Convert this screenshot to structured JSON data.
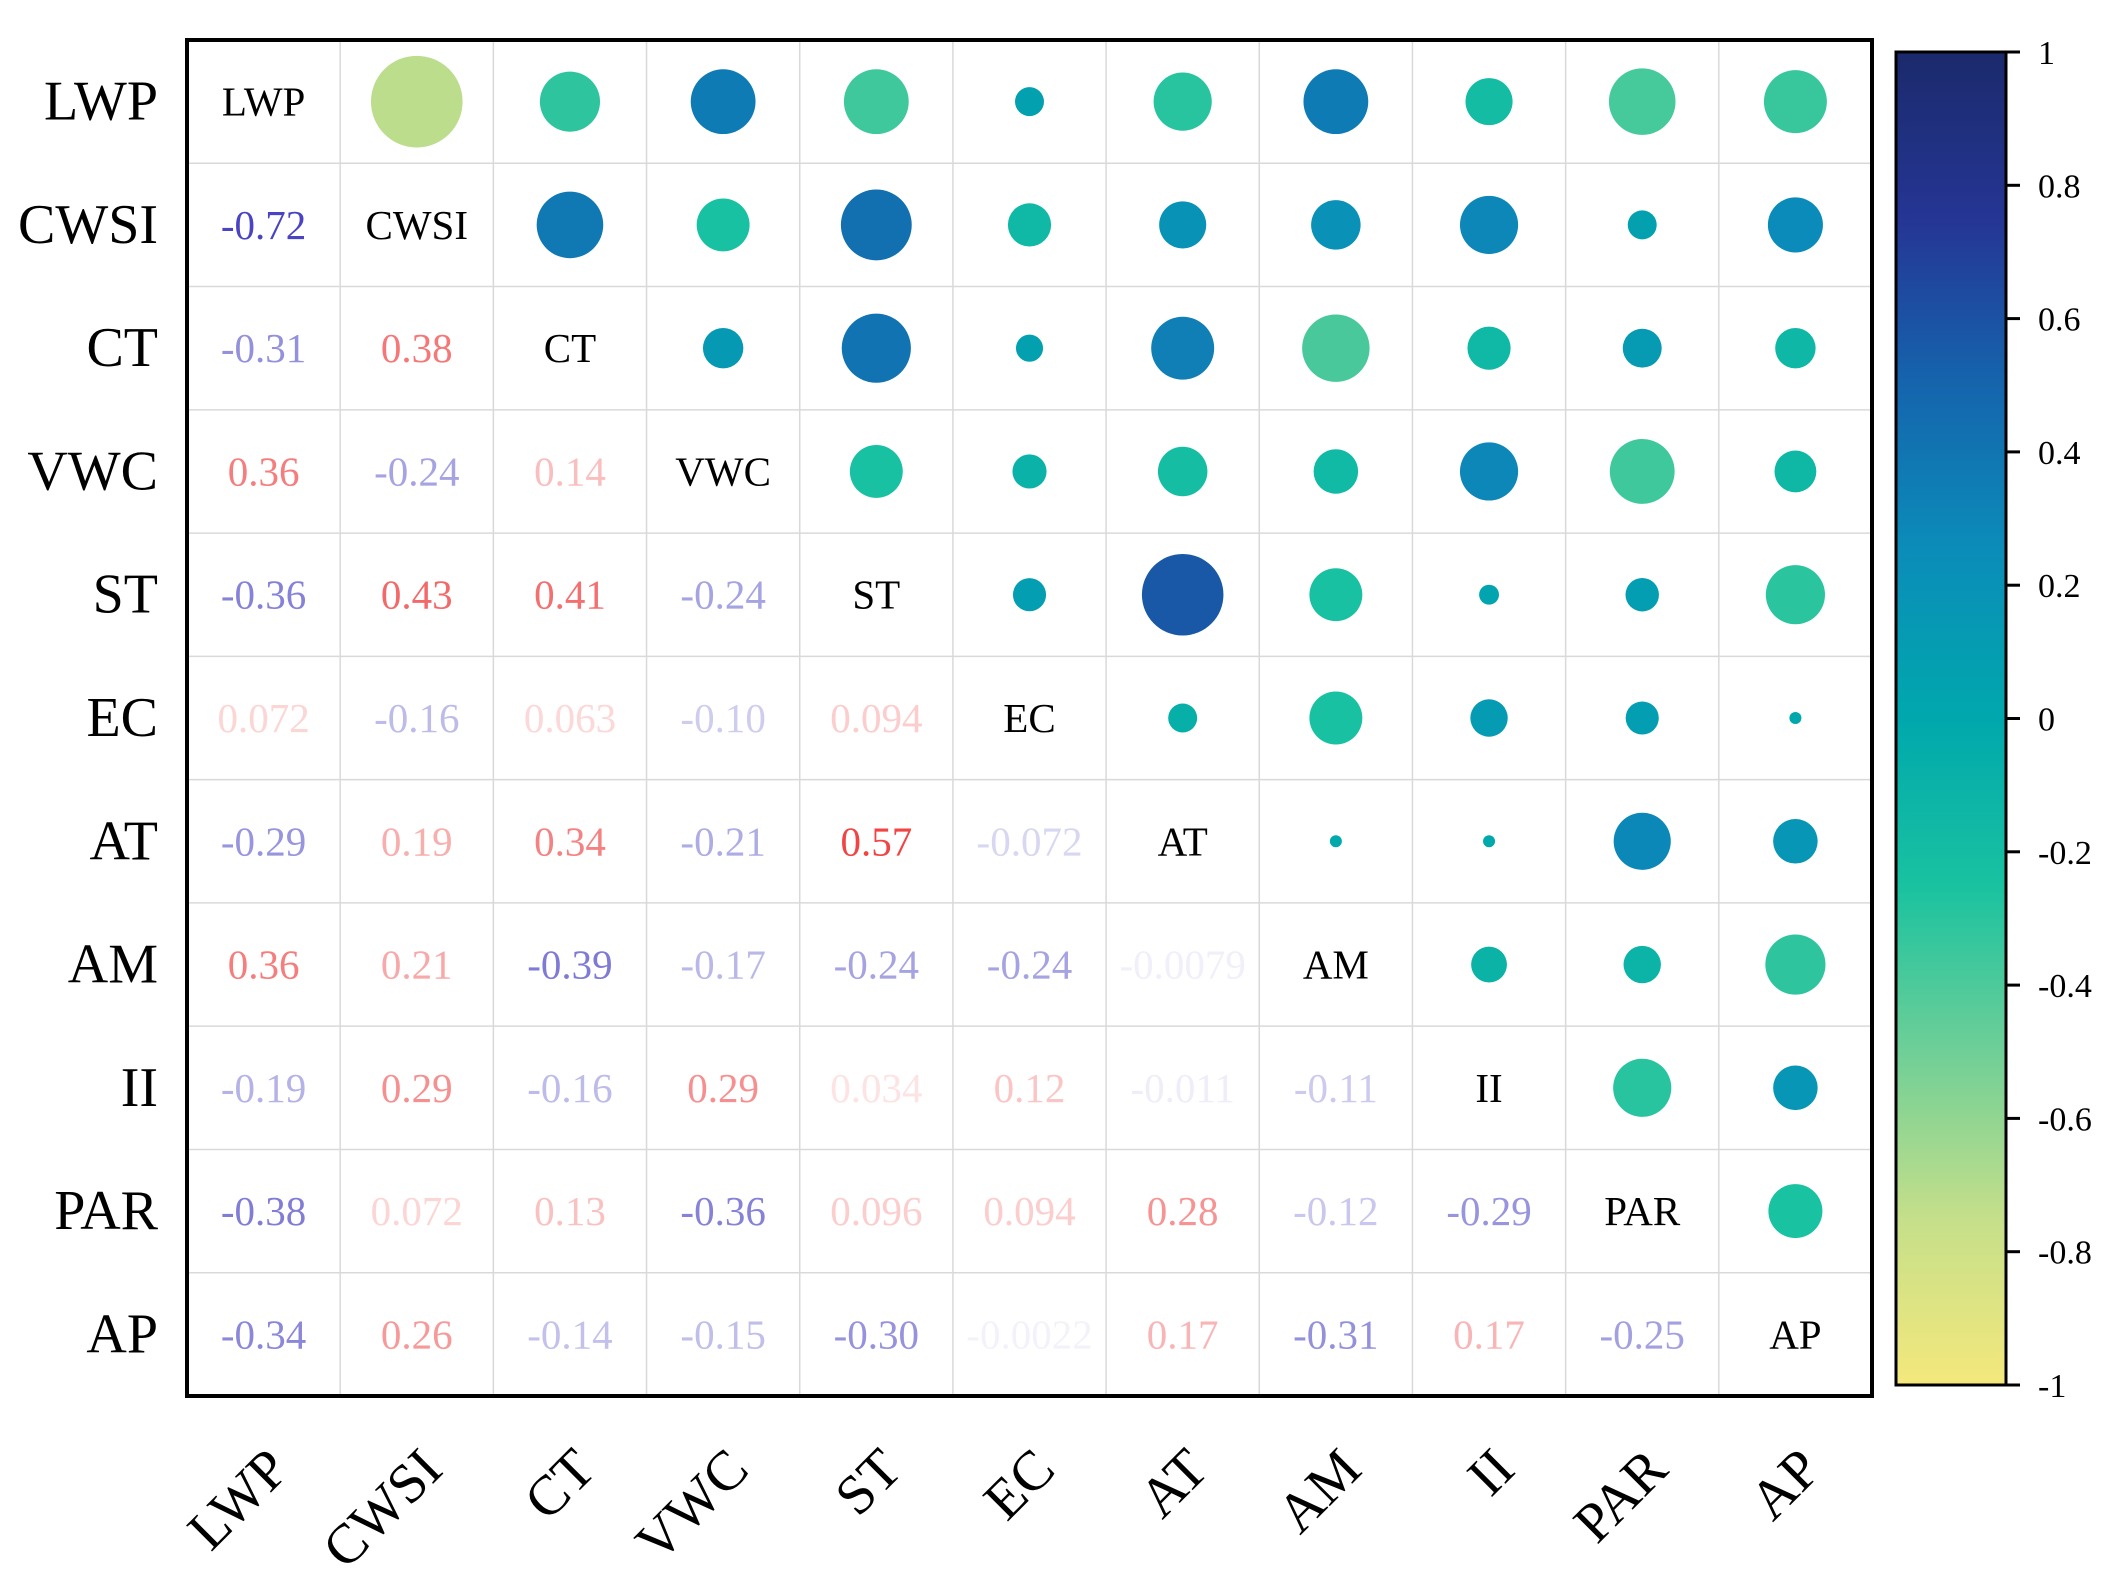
{
  "chart_data": {
    "type": "heatmap",
    "subtype": "correlation-matrix",
    "variables": [
      "LWP",
      "CWSI",
      "CT",
      "VWC",
      "ST",
      "EC",
      "AT",
      "AM",
      "II",
      "PAR",
      "AP"
    ],
    "lower_triangle_values": [
      [],
      [
        -0.72
      ],
      [
        -0.31,
        0.38
      ],
      [
        0.36,
        -0.24,
        0.14
      ],
      [
        -0.36,
        0.43,
        0.41,
        -0.24
      ],
      [
        0.072,
        -0.16,
        0.063,
        -0.1,
        0.094
      ],
      [
        -0.29,
        0.19,
        0.34,
        -0.21,
        0.57,
        -0.072
      ],
      [
        0.36,
        0.21,
        -0.39,
        -0.17,
        -0.24,
        -0.24,
        -0.0079
      ],
      [
        -0.19,
        0.29,
        -0.16,
        0.29,
        0.034,
        0.12,
        -0.011,
        -0.11
      ],
      [
        -0.38,
        0.072,
        0.13,
        -0.36,
        0.096,
        0.094,
        0.28,
        -0.12,
        -0.29
      ],
      [
        -0.34,
        0.26,
        -0.14,
        -0.15,
        -0.3,
        -0.0022,
        0.17,
        -0.31,
        0.17,
        -0.25
      ]
    ],
    "lower_triangle_labels": [
      [],
      [
        "-0.72"
      ],
      [
        "-0.31",
        "0.38"
      ],
      [
        "0.36",
        "-0.24",
        "0.14"
      ],
      [
        "-0.36",
        "0.43",
        "0.41",
        "-0.24"
      ],
      [
        "0.072",
        "-0.16",
        "0.063",
        "-0.10",
        "0.094"
      ],
      [
        "-0.29",
        "0.19",
        "0.34",
        "-0.21",
        "0.57",
        "-0.072"
      ],
      [
        "0.36",
        "0.21",
        "-0.39",
        "-0.17",
        "-0.24",
        "-0.24",
        "-0.0079"
      ],
      [
        "-0.19",
        "0.29",
        "-0.16",
        "0.29",
        "0.034",
        "0.12",
        "-0.011",
        "-0.11"
      ],
      [
        "-0.38",
        "0.072",
        "0.13",
        "-0.36",
        "0.096",
        "0.094",
        "0.28",
        "-0.12",
        "-0.29"
      ],
      [
        "-0.34",
        "0.26",
        "-0.14",
        "-0.15",
        "-0.30",
        "-0.0022",
        "0.17",
        "-0.31",
        "0.17",
        "-0.25"
      ]
    ],
    "upper_triangle_display": "circles",
    "upper_triangle_circle_values": [
      [
        -0.72,
        -0.31,
        0.36,
        -0.36,
        0.072,
        -0.29,
        0.36,
        -0.19,
        -0.38,
        -0.34
      ],
      [
        0.38,
        -0.24,
        0.43,
        -0.16,
        0.19,
        0.21,
        0.29,
        0.072,
        0.26
      ],
      [
        0.14,
        0.41,
        0.063,
        0.34,
        -0.39,
        -0.16,
        0.13,
        -0.14
      ],
      [
        -0.24,
        -0.1,
        -0.21,
        -0.17,
        0.29,
        -0.36,
        -0.15
      ],
      [
        0.094,
        0.57,
        -0.24,
        0.034,
        0.096,
        -0.3
      ],
      [
        -0.072,
        -0.24,
        0.12,
        0.094,
        -0.0022
      ],
      [
        -0.0079,
        -0.011,
        0.28,
        0.17
      ],
      [
        -0.11,
        -0.12,
        -0.31
      ],
      [
        -0.29,
        0.17
      ],
      [
        -0.25
      ],
      []
    ],
    "colorbar": {
      "ticks": [
        "1",
        "0.8",
        "0.6",
        "0.4",
        "0.2",
        "0",
        "-0.2",
        "-0.4",
        "-0.6",
        "-0.8",
        "-1"
      ],
      "range": [
        -1,
        1
      ],
      "gradient_top_to_bottom": [
        "#1b2a6b",
        "#253594",
        "#1565ad",
        "#0b8db9",
        "#00a8ad",
        "#19c2a0",
        "#6fcf97",
        "#c5df8a",
        "#f4e87c"
      ]
    },
    "text_colors": {
      "positive": "#f03c3c",
      "negative": "#4a44c4",
      "diagonal": "#000000"
    },
    "title": "",
    "xlabel": "",
    "ylabel": ""
  }
}
